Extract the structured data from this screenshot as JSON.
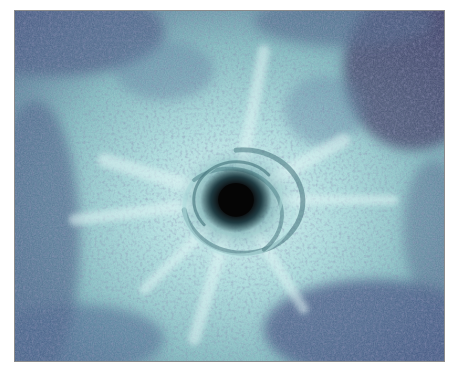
{
  "image": {
    "subject": "photo",
    "colors": {
      "background": "#ffffff",
      "frame_border": "#8a8a8a",
      "ice_light": "#cfeeee",
      "ice_mid": "#8fc7cb",
      "teal": "#5fa2a8",
      "shadow_blue": "#4a5f86",
      "deep_purple": "#3a3560",
      "core": "#080808"
    }
  }
}
